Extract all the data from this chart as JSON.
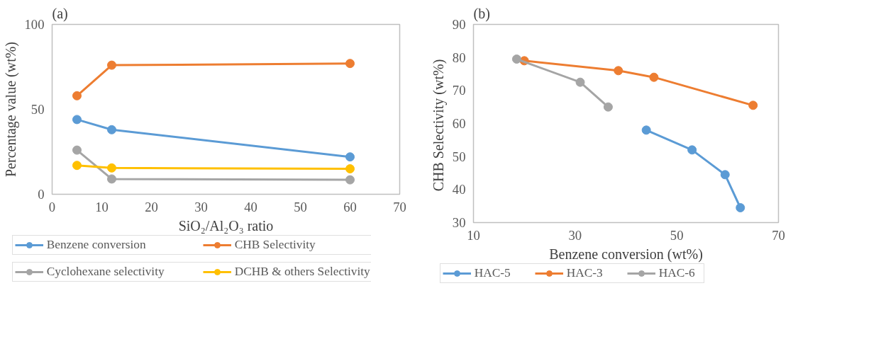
{
  "chart_data": [
    {
      "type": "line",
      "title": "(a)",
      "xlabel": "SiO₂/Al₂O₃ ratio",
      "ylabel": "Percentage value (wt%)",
      "x": [
        5,
        12,
        60
      ],
      "series": [
        {
          "name": "Benzene conversion",
          "color": "#5b9bd5",
          "values": [
            44,
            38,
            22
          ]
        },
        {
          "name": "CHB Selectivity",
          "color": "#ed7d31",
          "values": [
            58,
            76,
            77
          ]
        },
        {
          "name": "Cyclohexane selectivity",
          "color": "#a5a5a5",
          "values": [
            26,
            9,
            8.5
          ]
        },
        {
          "name": "DCHB & others Selectivity",
          "color": "#ffc000",
          "values": [
            17,
            15.5,
            15
          ]
        }
      ],
      "xlim": [
        0,
        70
      ],
      "xticks": [
        0,
        10,
        20,
        30,
        40,
        50,
        60,
        70
      ],
      "ylim": [
        0,
        100
      ],
      "yticks": [
        0,
        50,
        100
      ],
      "grid": false,
      "legend": "bottom",
      "marker": "circle",
      "line_style": "solid"
    },
    {
      "type": "line",
      "title": "(b)",
      "xlabel": "Benzene conversion (wt%)",
      "ylabel": "CHB Selectivity  (wt%)",
      "series": [
        {
          "name": "HAC-5",
          "color": "#5b9bd5",
          "x": [
            44,
            53,
            59.5,
            62.5
          ],
          "values": [
            58,
            52,
            44.5,
            34.5
          ]
        },
        {
          "name": "HAC-3",
          "color": "#ed7d31",
          "x": [
            20,
            38.5,
            45.5,
            65
          ],
          "values": [
            79,
            76,
            74,
            65.5
          ]
        },
        {
          "name": "HAC-6",
          "color": "#a5a5a5",
          "x": [
            18.5,
            31,
            36.5
          ],
          "values": [
            79.5,
            72.5,
            65
          ]
        }
      ],
      "xlim": [
        10,
        70
      ],
      "xticks": [
        10,
        30,
        50,
        70
      ],
      "ylim": [
        30,
        90
      ],
      "yticks": [
        30,
        40,
        50,
        60,
        70,
        80,
        90
      ],
      "grid": false,
      "legend": "bottom",
      "marker": "circle",
      "line_style": "solid"
    }
  ]
}
